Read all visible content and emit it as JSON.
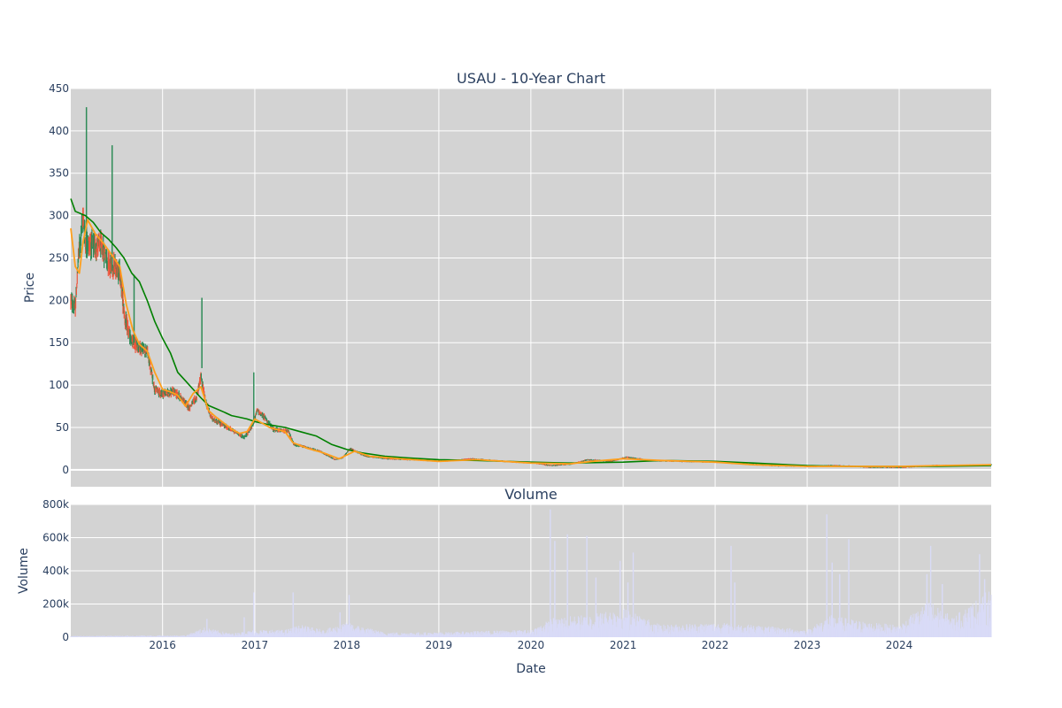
{
  "chart_data": [
    {
      "type": "candlestick",
      "title": "USAU - 10-Year Chart",
      "ylabel": "Price",
      "ylim": [
        -20,
        450
      ],
      "yticks": [
        0,
        50,
        100,
        150,
        200,
        250,
        300,
        350,
        400,
        450
      ],
      "grid": true,
      "legend": "none",
      "colors": {
        "increasing": "#2e8b57",
        "decreasing": "#ef553b",
        "ma_short": "#ff9f1c",
        "ma_long": "#008000",
        "background": "#d3d3d3"
      },
      "overlays": [
        {
          "color": "#008000",
          "points": [
            [
              "2015-01-02",
              320
            ],
            [
              "2015-01-20",
              305
            ],
            [
              "2015-03-01",
              300
            ],
            [
              "2015-04-01",
              292
            ],
            [
              "2015-05-01",
              280
            ],
            [
              "2015-06-01",
              272
            ],
            [
              "2015-07-01",
              262
            ],
            [
              "2015-08-01",
              250
            ],
            [
              "2015-09-01",
              232
            ],
            [
              "2015-10-01",
              222
            ],
            [
              "2015-11-01",
              200
            ],
            [
              "2015-12-01",
              175
            ],
            [
              "2016-01-01",
              155
            ],
            [
              "2016-02-01",
              138
            ],
            [
              "2016-03-01",
              115
            ],
            [
              "2016-04-01",
              105
            ],
            [
              "2016-05-01",
              95
            ],
            [
              "2016-06-01",
              85
            ],
            [
              "2016-07-01",
              76
            ],
            [
              "2016-08-01",
              72
            ],
            [
              "2016-09-01",
              68
            ],
            [
              "2016-10-01",
              64
            ],
            [
              "2016-11-01",
              62
            ],
            [
              "2016-12-01",
              60
            ],
            [
              "2017-01-01",
              57
            ],
            [
              "2017-03-01",
              53
            ],
            [
              "2017-05-01",
              50
            ],
            [
              "2017-07-01",
              45
            ],
            [
              "2017-09-01",
              40
            ],
            [
              "2017-11-01",
              30
            ],
            [
              "2018-01-01",
              24
            ],
            [
              "2018-03-01",
              20
            ],
            [
              "2018-06-01",
              16
            ],
            [
              "2018-09-01",
              14
            ],
            [
              "2019-01-01",
              12
            ],
            [
              "2019-06-01",
              11
            ],
            [
              "2020-01-01",
              9
            ],
            [
              "2020-06-01",
              8
            ],
            [
              "2021-01-01",
              9
            ],
            [
              "2021-06-01",
              11
            ],
            [
              "2022-01-01",
              10
            ],
            [
              "2022-06-01",
              8
            ],
            [
              "2023-01-01",
              5
            ],
            [
              "2023-06-01",
              4
            ],
            [
              "2024-01-01",
              4
            ],
            [
              "2024-06-01",
              4
            ],
            [
              "2024-12-31",
              5
            ]
          ]
        },
        {
          "color": "#ff9f1c",
          "points": [
            [
              "2015-01-02",
              285
            ],
            [
              "2015-01-20",
              240
            ],
            [
              "2015-02-05",
              232
            ],
            [
              "2015-02-20",
              270
            ],
            [
              "2015-03-10",
              295
            ],
            [
              "2015-04-10",
              278
            ],
            [
              "2015-05-10",
              268
            ],
            [
              "2015-06-10",
              255
            ],
            [
              "2015-07-15",
              240
            ],
            [
              "2015-08-10",
              195
            ],
            [
              "2015-09-05",
              165
            ],
            [
              "2015-10-01",
              148
            ],
            [
              "2015-11-01",
              140
            ],
            [
              "2015-12-01",
              115
            ],
            [
              "2016-01-01",
              95
            ],
            [
              "2016-02-01",
              92
            ],
            [
              "2016-03-01",
              88
            ],
            [
              "2016-04-01",
              75
            ],
            [
              "2016-05-01",
              90
            ],
            [
              "2016-06-01",
              98
            ],
            [
              "2016-07-01",
              70
            ],
            [
              "2016-08-01",
              62
            ],
            [
              "2016-09-01",
              55
            ],
            [
              "2016-10-01",
              48
            ],
            [
              "2016-11-01",
              43
            ],
            [
              "2016-12-01",
              45
            ],
            [
              "2017-01-01",
              60
            ],
            [
              "2017-03-01",
              50
            ],
            [
              "2017-05-01",
              45
            ],
            [
              "2017-06-01",
              32
            ],
            [
              "2017-08-01",
              25
            ],
            [
              "2017-10-01",
              20
            ],
            [
              "2017-12-01",
              13
            ],
            [
              "2018-02-01",
              22
            ],
            [
              "2018-04-01",
              16
            ],
            [
              "2018-08-01",
              13
            ],
            [
              "2019-01-01",
              10
            ],
            [
              "2019-06-01",
              12
            ],
            [
              "2020-01-01",
              8
            ],
            [
              "2020-06-01",
              7
            ],
            [
              "2020-09-01",
              10
            ],
            [
              "2021-01-01",
              13
            ],
            [
              "2021-06-01",
              11
            ],
            [
              "2022-01-01",
              9
            ],
            [
              "2022-06-01",
              6
            ],
            [
              "2023-01-01",
              4
            ],
            [
              "2023-06-01",
              4
            ],
            [
              "2024-01-01",
              4
            ],
            [
              "2024-06-01",
              5
            ],
            [
              "2024-12-31",
              6
            ]
          ]
        }
      ],
      "price_path": [
        [
          "2015-01-02",
          200
        ],
        [
          "2015-01-20",
          190
        ],
        [
          "2015-02-01",
          250
        ],
        [
          "2015-02-20",
          300
        ],
        [
          "2015-03-01",
          270
        ],
        [
          "2015-04-01",
          265
        ],
        [
          "2015-05-01",
          265
        ],
        [
          "2015-06-01",
          245
        ],
        [
          "2015-07-15",
          235
        ],
        [
          "2015-08-05",
          178
        ],
        [
          "2015-09-01",
          150
        ],
        [
          "2015-10-01",
          145
        ],
        [
          "2015-11-01",
          140
        ],
        [
          "2015-12-01",
          95
        ],
        [
          "2016-01-01",
          90
        ],
        [
          "2016-02-15",
          92
        ],
        [
          "2016-03-15",
          85
        ],
        [
          "2016-04-15",
          73
        ],
        [
          "2016-05-15",
          85
        ],
        [
          "2016-06-01",
          110
        ],
        [
          "2016-06-20",
          80
        ],
        [
          "2016-07-15",
          60
        ],
        [
          "2016-08-15",
          55
        ],
        [
          "2016-09-15",
          50
        ],
        [
          "2016-10-15",
          45
        ],
        [
          "2016-11-20",
          38
        ],
        [
          "2016-12-20",
          50
        ],
        [
          "2017-01-10",
          70
        ],
        [
          "2017-02-15",
          60
        ],
        [
          "2017-03-15",
          48
        ],
        [
          "2017-05-15",
          45
        ],
        [
          "2017-06-05",
          30
        ],
        [
          "2017-07-15",
          27
        ],
        [
          "2017-09-15",
          22
        ],
        [
          "2017-11-15",
          12
        ],
        [
          "2017-12-15",
          14
        ],
        [
          "2018-01-15",
          25
        ],
        [
          "2018-03-15",
          16
        ],
        [
          "2018-06-15",
          13
        ],
        [
          "2018-09-15",
          12
        ],
        [
          "2019-01-15",
          10
        ],
        [
          "2019-05-15",
          13
        ],
        [
          "2019-09-15",
          10
        ],
        [
          "2020-01-15",
          8
        ],
        [
          "2020-03-20",
          5
        ],
        [
          "2020-06-15",
          7
        ],
        [
          "2020-08-15",
          12
        ],
        [
          "2020-11-15",
          10
        ],
        [
          "2021-01-15",
          15
        ],
        [
          "2021-04-15",
          11
        ],
        [
          "2021-08-15",
          10
        ],
        [
          "2022-01-15",
          9
        ],
        [
          "2022-04-15",
          7
        ],
        [
          "2022-08-15",
          5
        ],
        [
          "2023-01-15",
          4
        ],
        [
          "2023-04-15",
          5
        ],
        [
          "2023-09-15",
          3
        ],
        [
          "2024-01-15",
          3
        ],
        [
          "2024-05-15",
          5
        ],
        [
          "2024-09-15",
          5
        ],
        [
          "2024-12-31",
          6
        ]
      ],
      "spikes": [
        {
          "date": "2015-03-05",
          "high": 428,
          "low": 250
        },
        {
          "date": "2015-06-15",
          "high": 383,
          "low": 235
        },
        {
          "date": "2015-09-10",
          "high": 230,
          "low": 150
        },
        {
          "date": "2016-06-05",
          "high": 203,
          "low": 120
        },
        {
          "date": "2016-12-28",
          "high": 115,
          "low": 55
        }
      ]
    },
    {
      "type": "bar",
      "title": "Volume",
      "xlabel": "Date",
      "ylabel": "Volume",
      "ylim": [
        0,
        800000
      ],
      "yticks": [
        0,
        200000,
        400000,
        600000,
        800000
      ],
      "ytick_labels": [
        "0",
        "200k",
        "400k",
        "600k",
        "800k"
      ],
      "grid": true,
      "colors": {
        "bar": "#d9dbf7",
        "background": "#d3d3d3"
      },
      "x_range": [
        "2015-01-02",
        "2024-12-31"
      ],
      "x_ticks": [
        "2016-01-01",
        "2017-01-01",
        "2018-01-01",
        "2019-01-01",
        "2020-01-01",
        "2021-01-01",
        "2022-01-01",
        "2023-01-01",
        "2024-01-01"
      ],
      "x_tick_labels": [
        "2016",
        "2017",
        "2018",
        "2019",
        "2020",
        "2021",
        "2022",
        "2023",
        "2024"
      ],
      "baseline": [
        [
          "2015-01-02",
          5000
        ],
        [
          "2016-04-01",
          8000
        ],
        [
          "2016-06-15",
          40000
        ],
        [
          "2016-10-01",
          15000
        ],
        [
          "2017-01-01",
          30000
        ],
        [
          "2017-05-01",
          30000
        ],
        [
          "2017-07-01",
          50000
        ],
        [
          "2017-10-01",
          30000
        ],
        [
          "2018-01-01",
          60000
        ],
        [
          "2018-06-01",
          20000
        ],
        [
          "2019-01-01",
          20000
        ],
        [
          "2019-06-01",
          25000
        ],
        [
          "2020-01-01",
          30000
        ],
        [
          "2020-04-01",
          80000
        ],
        [
          "2020-08-01",
          90000
        ],
        [
          "2021-01-01",
          120000
        ],
        [
          "2021-06-01",
          50000
        ],
        [
          "2022-01-01",
          60000
        ],
        [
          "2022-06-01",
          50000
        ],
        [
          "2023-01-01",
          30000
        ],
        [
          "2023-04-01",
          90000
        ],
        [
          "2023-09-01",
          60000
        ],
        [
          "2024-01-01",
          50000
        ],
        [
          "2024-05-01",
          150000
        ],
        [
          "2024-08-01",
          80000
        ],
        [
          "2024-12-31",
          200000
        ]
      ],
      "peaks": [
        {
          "date": "2016-06-25",
          "value": 110000
        },
        {
          "date": "2016-11-20",
          "value": 120000
        },
        {
          "date": "2016-12-28",
          "value": 270000
        },
        {
          "date": "2017-06-02",
          "value": 270000
        },
        {
          "date": "2017-12-05",
          "value": 150000
        },
        {
          "date": "2018-01-10",
          "value": 255000
        },
        {
          "date": "2020-03-18",
          "value": 770000
        },
        {
          "date": "2020-04-05",
          "value": 580000
        },
        {
          "date": "2020-05-25",
          "value": 620000
        },
        {
          "date": "2020-08-10",
          "value": 610000
        },
        {
          "date": "2020-09-15",
          "value": 360000
        },
        {
          "date": "2020-12-20",
          "value": 460000
        },
        {
          "date": "2021-01-20",
          "value": 330000
        },
        {
          "date": "2021-02-10",
          "value": 510000
        },
        {
          "date": "2022-03-05",
          "value": 550000
        },
        {
          "date": "2022-03-20",
          "value": 330000
        },
        {
          "date": "2023-03-20",
          "value": 740000
        },
        {
          "date": "2023-04-10",
          "value": 450000
        },
        {
          "date": "2023-05-10",
          "value": 380000
        },
        {
          "date": "2023-06-15",
          "value": 590000
        },
        {
          "date": "2024-04-20",
          "value": 380000
        },
        {
          "date": "2024-05-05",
          "value": 550000
        },
        {
          "date": "2024-06-20",
          "value": 320000
        },
        {
          "date": "2024-11-15",
          "value": 500000
        },
        {
          "date": "2024-12-05",
          "value": 350000
        }
      ]
    }
  ]
}
